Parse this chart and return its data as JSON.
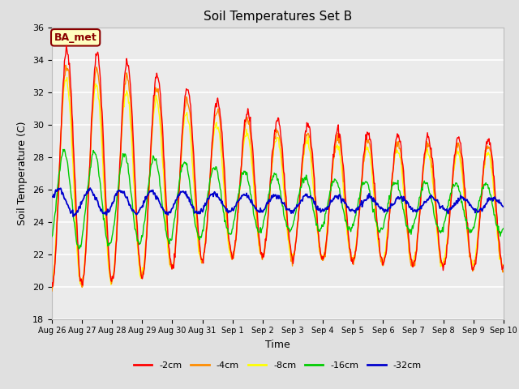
{
  "title": "Soil Temperatures Set B",
  "xlabel": "Time",
  "ylabel": "Soil Temperature (C)",
  "ylim": [
    18,
    36
  ],
  "yticks": [
    18,
    20,
    22,
    24,
    26,
    28,
    30,
    32,
    34,
    36
  ],
  "annotation": "BA_met",
  "annotation_color": "#8B0000",
  "annotation_bg": "#FFFFC0",
  "colors": {
    "-2cm": "#FF0000",
    "-4cm": "#FF8C00",
    "-8cm": "#FFFF00",
    "-16cm": "#00CC00",
    "-32cm": "#0000CD"
  },
  "legend_labels": [
    "-2cm",
    "-4cm",
    "-8cm",
    "-16cm",
    "-32cm"
  ],
  "x_tick_labels": [
    "Aug 26",
    "Aug 27",
    "Aug 28",
    "Aug 29",
    "Aug 30",
    "Aug 31",
    "Sep 1",
    "Sep 2",
    "Sep 3",
    "Sep 4",
    "Sep 5",
    "Sep 6",
    "Sep 7",
    "Sep 8",
    "Sep 9",
    "Sep 10"
  ],
  "bg_color": "#E0E0E0",
  "plot_bg_color": "#EBEBEB",
  "n_days": 15,
  "pts_per_day": 48
}
